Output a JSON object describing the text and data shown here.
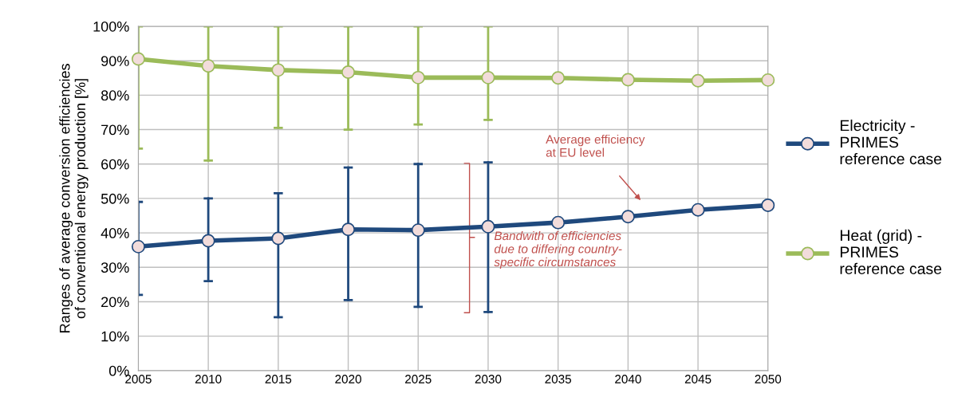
{
  "chart_data": {
    "type": "line",
    "ylabel": "Ranges of average conversion efficiencies\nof conventional energy production [%]",
    "x": [
      2005,
      2010,
      2015,
      2020,
      2025,
      2030,
      2035,
      2040,
      2045,
      2050
    ],
    "series": [
      {
        "name": "Electricity -\nPRIMES\nreference case",
        "color": "#1f497d",
        "values": [
          36,
          37.7,
          38.4,
          41,
          40.8,
          41.8,
          43,
          44.7,
          46.7,
          48
        ],
        "errors": [
          [
            22,
            49
          ],
          [
            26,
            50
          ],
          [
            15.5,
            51.5
          ],
          [
            20.5,
            59
          ],
          [
            18.5,
            60
          ],
          [
            17,
            60.5
          ],
          null,
          null,
          null,
          null
        ]
      },
      {
        "name": "Heat (grid) -\nPRIMES\nreference case",
        "color": "#9bbb59",
        "values": [
          90.5,
          88.5,
          87.3,
          86.7,
          85.1,
          85.1,
          85,
          84.5,
          84.2,
          84.4
        ],
        "errors": [
          [
            64.5,
            100
          ],
          [
            61,
            100
          ],
          [
            70.5,
            100
          ],
          [
            70,
            100
          ],
          [
            71.5,
            100
          ],
          [
            72.8,
            100
          ],
          null,
          null,
          null,
          null
        ]
      }
    ],
    "xlim": [
      2005,
      2050
    ],
    "xticks": [
      2005,
      2010,
      2015,
      2020,
      2025,
      2030,
      2035,
      2040,
      2045,
      2050
    ],
    "ylim": [
      0,
      100
    ],
    "yticks": [
      {
        "value": 0,
        "label": "0%"
      },
      {
        "value": 10,
        "label": "10%"
      },
      {
        "value": 20,
        "label": "20%"
      },
      {
        "value": 30,
        "label": "30%"
      },
      {
        "value": 40,
        "label": "40%"
      },
      {
        "value": 50,
        "label": "50%"
      },
      {
        "value": 60,
        "label": "60%"
      },
      {
        "value": 70,
        "label": "70%"
      },
      {
        "value": 80,
        "label": "80%"
      },
      {
        "value": 90,
        "label": "90%"
      },
      {
        "value": 100,
        "label": "100%"
      }
    ],
    "annotations": [
      "Average efficiency\nat EU level",
      "Bandwith of efficiencies\ndue to differing country-\nspecific circumstances"
    ],
    "grid": true,
    "legend": "right",
    "marker": "circle",
    "line_style": "solid"
  }
}
